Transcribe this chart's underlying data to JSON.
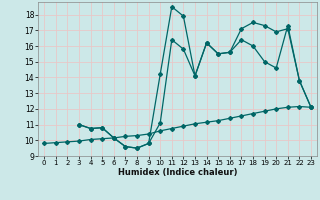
{
  "xlabel": "Humidex (Indice chaleur)",
  "bg_color": "#cce8e8",
  "grid_color": "#e8c8c8",
  "line_color": "#006666",
  "xlim": [
    -0.5,
    23.5
  ],
  "ylim": [
    9,
    18.8
  ],
  "yticks": [
    9,
    10,
    11,
    12,
    13,
    14,
    15,
    16,
    17,
    18
  ],
  "xticks": [
    0,
    1,
    2,
    3,
    4,
    5,
    6,
    7,
    8,
    9,
    10,
    11,
    12,
    13,
    14,
    15,
    16,
    17,
    18,
    19,
    20,
    21,
    22,
    23
  ],
  "line1_x": [
    0,
    1,
    2,
    3,
    4,
    5,
    6,
    7,
    8,
    9,
    10,
    11,
    12,
    13,
    14,
    15,
    16,
    17,
    18,
    19,
    20,
    21,
    22,
    23
  ],
  "line1_y": [
    9.8,
    9.85,
    9.9,
    9.95,
    10.05,
    10.1,
    10.15,
    10.25,
    10.3,
    10.4,
    10.6,
    10.75,
    10.9,
    11.05,
    11.15,
    11.25,
    11.4,
    11.55,
    11.7,
    11.85,
    12.0,
    12.1,
    12.15,
    12.1
  ],
  "line2_x": [
    3,
    4,
    5,
    6,
    7,
    8,
    9,
    10,
    11,
    12,
    13,
    14,
    15,
    16,
    17,
    18,
    19,
    20,
    21,
    22,
    23
  ],
  "line2_y": [
    11.0,
    10.75,
    10.8,
    10.15,
    9.6,
    9.5,
    9.8,
    11.1,
    16.4,
    15.8,
    14.1,
    16.2,
    15.5,
    15.6,
    16.4,
    16.0,
    15.0,
    14.6,
    17.3,
    13.8,
    12.1
  ],
  "line3_x": [
    3,
    4,
    5,
    6,
    7,
    8,
    9,
    10,
    11,
    12,
    13,
    14,
    15,
    16,
    17,
    18,
    19,
    20,
    21,
    22,
    23
  ],
  "line3_y": [
    11.0,
    10.75,
    10.8,
    10.15,
    9.6,
    9.5,
    9.8,
    14.2,
    18.5,
    17.9,
    14.1,
    16.2,
    15.5,
    15.6,
    17.1,
    17.5,
    17.3,
    16.9,
    17.1,
    13.8,
    12.1
  ]
}
